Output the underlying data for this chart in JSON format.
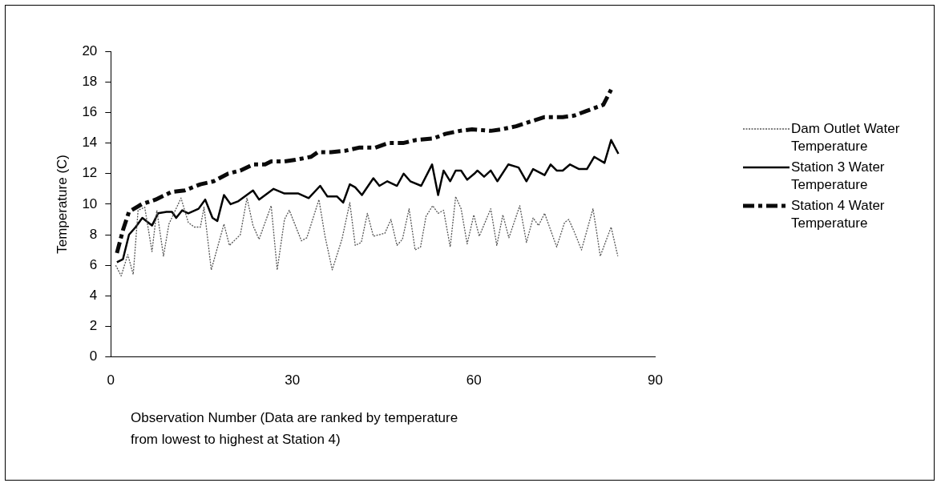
{
  "chart_data": {
    "type": "line",
    "xlabel": "Observation Number (Data are ranked by temperature from lowest to highest at Station 4)",
    "ylabel": "Temperature (C)",
    "xlim": [
      0,
      90
    ],
    "xticks": [
      0,
      30,
      60,
      90
    ],
    "ylim": [
      0,
      20
    ],
    "yticks": [
      0,
      2,
      4,
      6,
      8,
      10,
      12,
      14,
      16,
      18,
      20
    ],
    "grid": false,
    "legend": "right",
    "marker": "none",
    "series": [
      {
        "name": "Dam Outlet Water Temperature",
        "color": "#555555",
        "line_style": "dotted",
        "x": [
          0.8,
          1.7,
          2.8,
          3.7,
          4.5,
          5.6,
          6.8,
          7.6,
          8.7,
          9.6,
          11.6,
          12.8,
          13.8,
          14.8,
          15.4,
          16.6,
          18.7,
          19.6,
          21.4,
          22.5,
          23.5,
          24.5,
          26.5,
          27.5,
          28.7,
          29.5,
          30.8,
          31.5,
          32.4,
          34.4,
          35.4,
          36.6,
          37.8,
          38.2,
          39.5,
          40.4,
          41.4,
          42.4,
          43.4,
          45.3,
          46.3,
          47.3,
          48.2,
          49.3,
          50.3,
          51.2,
          52.1,
          53.2,
          54.1,
          55,
          56.1,
          57,
          57.9,
          58.9,
          60,
          60.9,
          62.8,
          63.8,
          64.8,
          65.8,
          67.6,
          68.7,
          69.8,
          70.7,
          71.7,
          73.7,
          75,
          75.7,
          76.7,
          77.8,
          79.7,
          80.3,
          80.9,
          82.7,
          83.8
        ],
        "values": [
          6.0,
          5.3,
          6.7,
          5.4,
          9.6,
          9.8,
          6.9,
          9.6,
          6.6,
          8.7,
          10.4,
          8.8,
          8.5,
          8.5,
          9.8,
          5.7,
          8.7,
          7.3,
          8.0,
          10.4,
          8.6,
          7.7,
          9.9,
          5.7,
          9.0,
          9.6,
          8.3,
          7.6,
          7.8,
          10.3,
          7.9,
          5.7,
          7.2,
          7.7,
          10.1,
          7.3,
          7.5,
          9.4,
          7.9,
          8.1,
          9.0,
          7.3,
          7.7,
          9.7,
          7.0,
          7.2,
          9.2,
          9.9,
          9.4,
          9.6,
          7.2,
          10.5,
          9.7,
          7.4,
          9.3,
          7.9,
          9.7,
          7.3,
          9.3,
          7.8,
          9.9,
          7.5,
          9.1,
          8.6,
          9.4,
          7.2,
          8.8,
          9.0,
          8.1,
          7.0,
          9.7,
          8.2,
          6.6,
          8.5,
          6.6
        ]
      },
      {
        "name": "Station 3 Water Temperature",
        "color": "#000000",
        "line_style": "solid",
        "x": [
          1,
          2,
          3,
          4.1,
          5.2,
          6.8,
          7.8,
          9.2,
          10.1,
          10.8,
          11.8,
          12.8,
          14.5,
          15.6,
          16.8,
          17.6,
          18.7,
          19.8,
          21.1,
          23.5,
          24.5,
          26.9,
          28.7,
          31,
          32.7,
          34.6,
          35.8,
          37.4,
          38.4,
          39.5,
          40.4,
          41.5,
          43.4,
          44.4,
          45.7,
          47.3,
          48.4,
          49.5,
          51.3,
          53.1,
          54.1,
          55,
          56.1,
          57,
          57.9,
          58.9,
          60.1,
          60.6,
          61.7,
          62.8,
          63.9,
          65.7,
          67.4,
          68.7,
          69.8,
          71.7,
          72.7,
          73.7,
          74.7,
          75.9,
          77.4,
          78.7,
          79.9,
          81.6,
          82.7,
          83.9
        ],
        "values": [
          6.2,
          6.4,
          8.0,
          8.5,
          9.1,
          8.6,
          9.4,
          9.5,
          9.5,
          9.1,
          9.6,
          9.4,
          9.7,
          10.3,
          9.1,
          8.9,
          10.6,
          10.0,
          10.2,
          10.9,
          10.3,
          11.0,
          10.7,
          10.7,
          10.4,
          11.2,
          10.5,
          10.5,
          10.1,
          11.3,
          11.1,
          10.6,
          11.7,
          11.2,
          11.5,
          11.2,
          12.0,
          11.5,
          11.2,
          12.6,
          10.6,
          12.2,
          11.5,
          12.2,
          12.2,
          11.6,
          12.0,
          12.2,
          11.8,
          12.2,
          11.5,
          12.6,
          12.4,
          11.5,
          12.3,
          11.9,
          12.6,
          12.2,
          12.2,
          12.6,
          12.3,
          12.3,
          13.1,
          12.7,
          14.2,
          13.3
        ]
      },
      {
        "name": "Station 4 Water Temperature",
        "color": "#0a0a0a",
        "line_style": "dashed",
        "x": [
          1,
          2,
          3,
          5.1,
          7.4,
          10,
          12.2,
          14.8,
          17,
          19.4,
          21.4,
          23.5,
          25.5,
          26.5,
          28.7,
          30.5,
          33.1,
          34.2,
          36.4,
          38.8,
          41,
          43.7,
          45.9,
          48.3,
          50.4,
          53.3,
          55.3,
          57.7,
          59.7,
          62.8,
          64.6,
          67,
          69.3,
          71.7,
          74.7,
          76.6,
          78.6,
          81.4,
          82.7
        ],
        "values": [
          6.8,
          8.3,
          9.5,
          10.0,
          10.3,
          10.8,
          10.9,
          11.3,
          11.5,
          12.0,
          12.2,
          12.6,
          12.6,
          12.8,
          12.8,
          12.9,
          13.1,
          13.4,
          13.4,
          13.5,
          13.7,
          13.7,
          14.0,
          14.0,
          14.2,
          14.3,
          14.6,
          14.8,
          14.9,
          14.8,
          14.9,
          15.1,
          15.4,
          15.7,
          15.7,
          15.8,
          16.1,
          16.5,
          17.5
        ]
      }
    ]
  }
}
